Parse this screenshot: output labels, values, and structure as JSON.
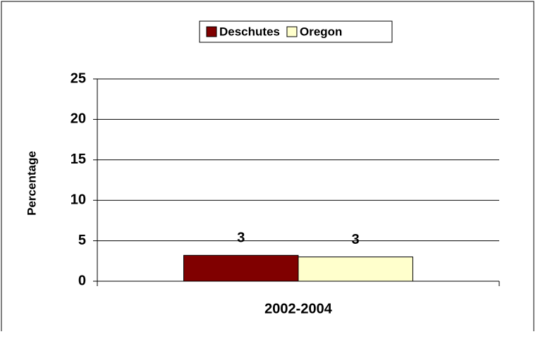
{
  "chart_data": {
    "type": "bar",
    "y_label": "Percentage",
    "categories": [
      "2002-2004"
    ],
    "series": [
      {
        "name": "Deschutes",
        "color": "#800000",
        "values": [
          3.2
        ],
        "value_labels": [
          "3"
        ]
      },
      {
        "name": "Oregon",
        "color": "#ffffcc",
        "values": [
          3.0
        ],
        "value_labels": [
          "3"
        ]
      }
    ],
    "ylim": [
      0,
      25
    ],
    "yticks": [
      0,
      5,
      10,
      15,
      20,
      25
    ],
    "grid": true,
    "legend": "top"
  }
}
